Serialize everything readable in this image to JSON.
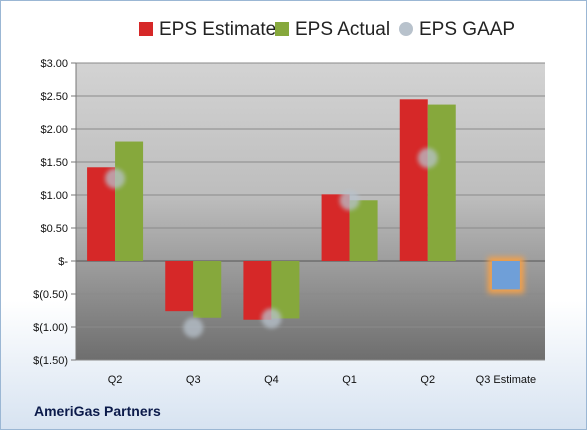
{
  "company": "AmeriGas Partners",
  "legend": {
    "estimate": "EPS Estimate",
    "actual": "EPS Actual",
    "gaap": "EPS GAAP"
  },
  "colors": {
    "estimate": "#d62828",
    "actual": "#86a83c",
    "gaap": "#b8c2cc",
    "future_estimate": "#6f9fd8",
    "future_glow": "#f2a04c"
  },
  "chart_data": {
    "type": "bar",
    "categories": [
      "Q2",
      "Q3",
      "Q4",
      "Q1",
      "Q2",
      "Q3 Estimate"
    ],
    "series": [
      {
        "name": "EPS Estimate",
        "values": [
          1.42,
          -0.76,
          -0.89,
          1.01,
          2.45,
          -0.43
        ]
      },
      {
        "name": "EPS Actual",
        "values": [
          1.81,
          -0.86,
          -0.87,
          0.92,
          2.37,
          null
        ]
      },
      {
        "name": "EPS GAAP",
        "values": [
          1.25,
          -1.01,
          -0.87,
          0.92,
          1.56,
          null
        ]
      }
    ],
    "y_ticks": [
      3.0,
      2.5,
      2.0,
      1.5,
      1.0,
      0.5,
      0,
      -0.5,
      -1.0,
      -1.5
    ],
    "y_tick_labels": [
      "$3.00",
      "$2.50",
      "$2.00",
      "$1.50",
      "$1.00",
      "$0.50",
      "$-",
      "$(0.50)",
      "$(1.00)",
      "$(1.50)"
    ],
    "ylim": [
      -1.5,
      3.0
    ],
    "grid": true,
    "legend_position": "top"
  }
}
